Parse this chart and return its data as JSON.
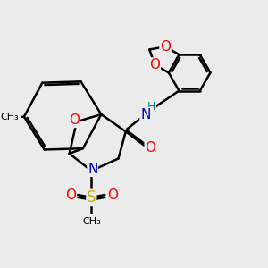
{
  "bg_color": "#ebebeb",
  "bond_color": "#000000",
  "bond_width": 1.8,
  "atom_colors": {
    "O": "#ff0000",
    "N": "#0000cd",
    "S": "#ccaa00",
    "H": "#008080",
    "C": "#000000"
  },
  "font_size": 10,
  "fig_size": [
    3.0,
    3.0
  ],
  "dpi": 100
}
